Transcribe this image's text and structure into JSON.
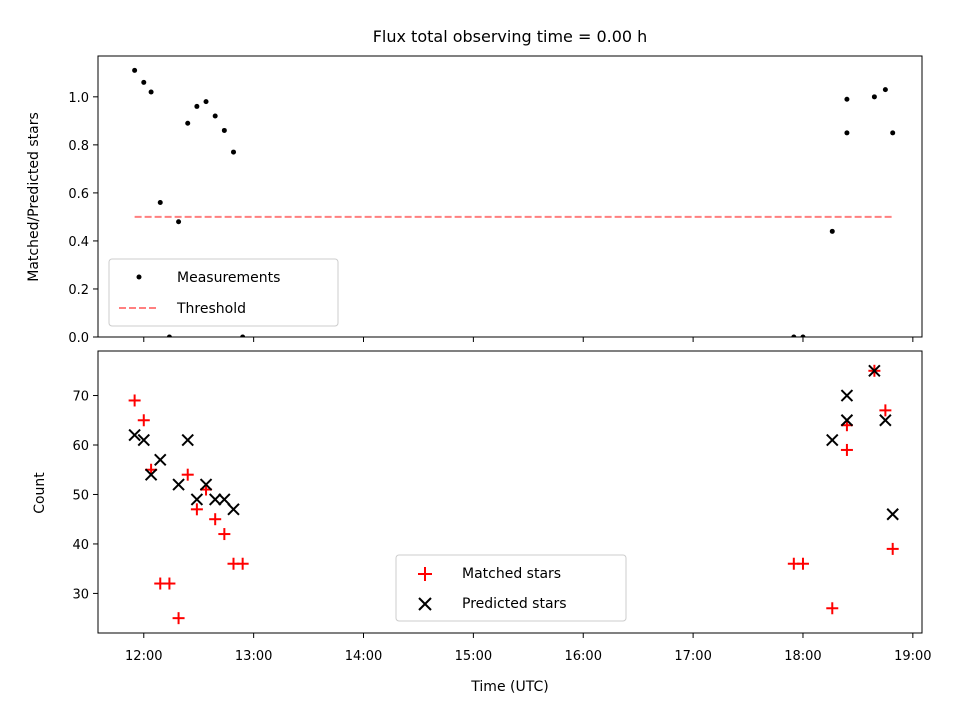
{
  "title": "Flux total observing time = 0.00 h",
  "colors": {
    "measurement": "#000000",
    "threshold": "#ff7f7f",
    "matched": "#ff0000",
    "predicted": "#000000",
    "frame": "#000000",
    "legend_border": "#cccccc"
  },
  "chart_data": [
    {
      "type": "scatter",
      "xlabel": "",
      "ylabel": "Matched/Predicted stars",
      "xlim": [
        "11:35",
        "19:05"
      ],
      "ylim": [
        0,
        1.17
      ],
      "yticks": [
        0.0,
        0.2,
        0.4,
        0.6,
        0.8,
        1.0
      ],
      "ytick_labels": [
        "0.0",
        "0.2",
        "0.4",
        "0.6",
        "0.8",
        "1.0"
      ],
      "xtick_labels_shown": false,
      "grid": false,
      "legend_position": "lower-left",
      "series": [
        {
          "name": "Measurements",
          "marker": "dot",
          "points": [
            [
              "11:55",
              1.11
            ],
            [
              "12:00",
              1.06
            ],
            [
              "12:04",
              1.02
            ],
            [
              "12:09",
              0.56
            ],
            [
              "12:14",
              0.0
            ],
            [
              "12:19",
              0.48
            ],
            [
              "12:24",
              0.89
            ],
            [
              "12:29",
              0.96
            ],
            [
              "12:34",
              0.98
            ],
            [
              "12:39",
              0.92
            ],
            [
              "12:44",
              0.86
            ],
            [
              "12:49",
              0.77
            ],
            [
              "12:54",
              0.0
            ],
            [
              "17:55",
              0.0
            ],
            [
              "18:00",
              0.0
            ],
            [
              "18:16",
              0.44
            ],
            [
              "18:24",
              0.85
            ],
            [
              "18:24",
              0.99
            ],
            [
              "18:39",
              1.0
            ],
            [
              "18:45",
              1.03
            ],
            [
              "18:49",
              0.85
            ]
          ]
        },
        {
          "name": "Threshold",
          "marker": "dashed-line",
          "points": [
            [
              "11:55",
              0.5
            ],
            [
              "18:49",
              0.5
            ]
          ]
        }
      ]
    },
    {
      "type": "scatter",
      "xlabel": "Time (UTC)",
      "ylabel": "Count",
      "xlim": [
        "11:35",
        "19:05"
      ],
      "ylim": [
        22,
        79
      ],
      "yticks": [
        30,
        40,
        50,
        60,
        70
      ],
      "ytick_labels": [
        "30",
        "40",
        "50",
        "60",
        "70"
      ],
      "xticks": [
        "12:00",
        "13:00",
        "14:00",
        "15:00",
        "16:00",
        "17:00",
        "18:00",
        "19:00"
      ],
      "xtick_labels": [
        "12:00",
        "13:00",
        "14:00",
        "15:00",
        "16:00",
        "17:00",
        "18:00",
        "19:00"
      ],
      "grid": false,
      "legend_position": "lower-center",
      "series": [
        {
          "name": "Matched stars",
          "marker": "plus",
          "points": [
            [
              "11:55",
              69
            ],
            [
              "12:00",
              65
            ],
            [
              "12:04",
              55
            ],
            [
              "12:09",
              32
            ],
            [
              "12:14",
              32
            ],
            [
              "12:19",
              25
            ],
            [
              "12:24",
              54
            ],
            [
              "12:29",
              47
            ],
            [
              "12:34",
              51
            ],
            [
              "12:39",
              45
            ],
            [
              "12:44",
              42
            ],
            [
              "12:49",
              36
            ],
            [
              "12:54",
              36
            ],
            [
              "17:55",
              36
            ],
            [
              "18:00",
              36
            ],
            [
              "18:16",
              27
            ],
            [
              "18:24",
              59
            ],
            [
              "18:24",
              64
            ],
            [
              "18:39",
              75
            ],
            [
              "18:45",
              67
            ],
            [
              "18:49",
              39
            ]
          ]
        },
        {
          "name": "Predicted stars",
          "marker": "x",
          "points": [
            [
              "11:55",
              62
            ],
            [
              "12:00",
              61
            ],
            [
              "12:04",
              54
            ],
            [
              "12:09",
              57
            ],
            [
              "12:19",
              52
            ],
            [
              "12:24",
              61
            ],
            [
              "12:29",
              49
            ],
            [
              "12:34",
              52
            ],
            [
              "12:39",
              49
            ],
            [
              "12:44",
              49
            ],
            [
              "12:49",
              47
            ],
            [
              "18:16",
              61
            ],
            [
              "18:24",
              65
            ],
            [
              "18:24",
              70
            ],
            [
              "18:39",
              75
            ],
            [
              "18:45",
              65
            ],
            [
              "18:49",
              46
            ]
          ]
        }
      ]
    }
  ]
}
